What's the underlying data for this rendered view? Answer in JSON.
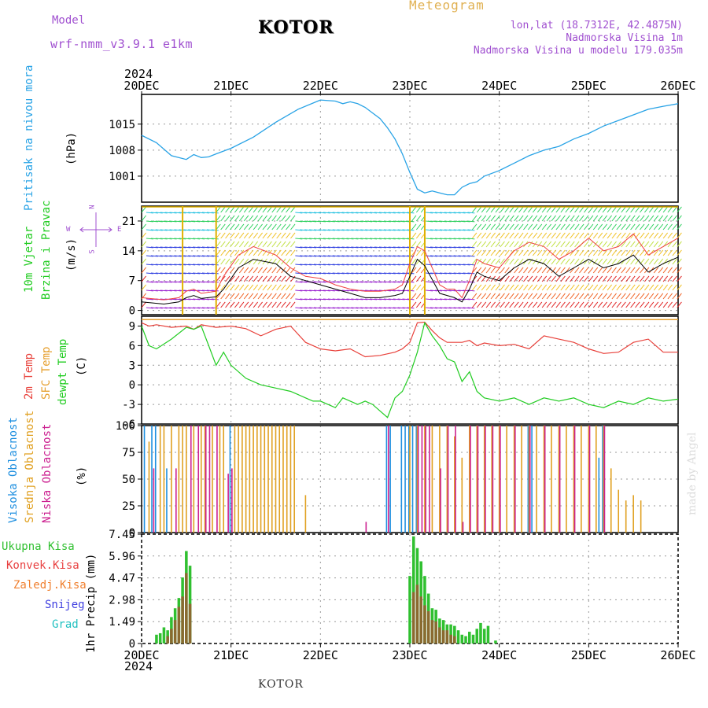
{
  "header": {
    "model_label": "Model",
    "model_name": "wrf-nmm_v3.9.1 e1km",
    "station": "KOTOR",
    "product": "Meteogram",
    "lonlat": "lon,lat (18.7312E, 42.4875N)",
    "elevation": "Nadmorska Visina 1m",
    "model_elevation": "Nadmorska Visina u modelu 179.035m",
    "watermark": "made by Angel",
    "footer_station": "KOTOR"
  },
  "time_axis": {
    "year": "2024",
    "ticks": [
      "20DEC",
      "21DEC",
      "22DEC",
      "23DEC",
      "24DEC",
      "25DEC",
      "26DEC"
    ]
  },
  "labels": {
    "pressure": [
      "Pritisak na nivou mora",
      "(hPa)"
    ],
    "wind": [
      "10m Vjetar",
      "Brzina i Pravac",
      "(m/s)"
    ],
    "wind_compass": {
      "north": "N",
      "west": "W",
      "east": "E",
      "south": "S"
    },
    "temp": [
      "2m Temp",
      "SFC Temp",
      "dewpt Temp",
      "(C)"
    ],
    "cloud": [
      "Visoka Oblacnost",
      "Srednja Oblacnost",
      "Niska Oblacnost",
      "(%)"
    ],
    "precip_legend": [
      "Ukupna Kisa",
      "Konvek.Kisa",
      "Zaledj.Kisa",
      "Snijeg",
      "Grad"
    ],
    "precip_axis": "1hr Precip (mm)"
  },
  "colors": {
    "pressure": "#29a3e6",
    "temp2m": "#e8403a",
    "sfc": "#e6a030",
    "dewpt": "#22cc22",
    "high_cloud": "#2090e0",
    "mid_cloud": "#e0a020",
    "low_cloud": "#cc2090",
    "total_rain": "#30c030",
    "conv_rain": "#e84040",
    "freezing": "#f08030",
    "snow": "#4040e0",
    "hail": "#20c0c0",
    "model_title": "#a050d0",
    "meteogram_title": "#e0b050"
  },
  "chart_data": [
    {
      "panel": "pressure",
      "type": "line",
      "ylim": [
        994,
        1023
      ],
      "yticks": [
        1001,
        1008,
        1015
      ],
      "grid": true,
      "series": [
        {
          "x": [
            0,
            4,
            8,
            12,
            14,
            16,
            18,
            20,
            24,
            30,
            36,
            42,
            48,
            52,
            54,
            56,
            58,
            60,
            62,
            64,
            66,
            68,
            70,
            72,
            74,
            76,
            78,
            80,
            82,
            84,
            86,
            88,
            90,
            92,
            96,
            100,
            104,
            108,
            112,
            116,
            120,
            124,
            128,
            132,
            136,
            140,
            144
          ],
          "y": [
            1012,
            1010,
            1006.5,
            1005.5,
            1006.8,
            1006,
            1006.2,
            1007,
            1008.5,
            1011.5,
            1015.5,
            1019,
            1021.5,
            1021.2,
            1020.5,
            1021,
            1020.5,
            1019.5,
            1018,
            1016.5,
            1014,
            1011,
            1007,
            1002,
            997.5,
            996.5,
            997,
            996.5,
            996,
            996,
            998,
            999,
            999.5,
            1001,
            1002.5,
            1004.5,
            1006.5,
            1008,
            1009,
            1011,
            1012.5,
            1014.5,
            1016,
            1017.5,
            1019,
            1019.8,
            1020.5
          ]
        }
      ]
    },
    {
      "panel": "wind",
      "type": "line",
      "ylim": [
        -1,
        24.5
      ],
      "yticks": [
        0,
        7,
        14,
        21
      ],
      "grid": true,
      "series": [
        {
          "name": "speed",
          "x": [
            0,
            6,
            10,
            12,
            14,
            16,
            20,
            22,
            26,
            30,
            36,
            40,
            44,
            48,
            52,
            56,
            60,
            64,
            68,
            70,
            72,
            74,
            76,
            80,
            82,
            84,
            86,
            88,
            90,
            92,
            96,
            100,
            104,
            108,
            112,
            116,
            120,
            124,
            128,
            132,
            136,
            140,
            144
          ],
          "y": [
            2,
            1.5,
            2,
            3,
            3.5,
            2.8,
            3.2,
            5,
            10,
            12,
            11,
            8,
            7,
            6,
            5,
            4,
            3,
            3,
            3.5,
            4,
            8,
            12,
            10.5,
            4,
            3.5,
            3,
            2,
            5,
            9,
            8,
            7,
            10,
            12,
            11,
            8,
            10,
            12,
            10,
            11,
            13,
            9,
            11,
            12.5
          ]
        },
        {
          "name": "gust",
          "x": [
            0,
            6,
            10,
            12,
            14,
            16,
            20,
            22,
            26,
            30,
            36,
            40,
            44,
            48,
            52,
            56,
            60,
            64,
            68,
            70,
            72,
            74,
            76,
            80,
            82,
            84,
            86,
            88,
            90,
            92,
            96,
            100,
            104,
            108,
            112,
            116,
            120,
            124,
            128,
            132,
            136,
            140,
            144
          ],
          "y": [
            3,
            2.5,
            3,
            4.5,
            5,
            4,
            4.5,
            8,
            13,
            15,
            13,
            10,
            8,
            7.5,
            6,
            5,
            4.5,
            4.5,
            5,
            6,
            11,
            15,
            14,
            6,
            5,
            5,
            3,
            7,
            12,
            11,
            10,
            14,
            16,
            15,
            12,
            14,
            17,
            14,
            15,
            18,
            13,
            15,
            17
          ]
        }
      ]
    },
    {
      "panel": "temperature",
      "type": "line",
      "ylim": [
        -6,
        10.5
      ],
      "yticks": [
        -6,
        -3,
        0,
        3,
        6,
        9
      ],
      "grid": true,
      "series": [
        {
          "name": "sfc",
          "x": [
            0,
            144
          ],
          "y": [
            10,
            10
          ]
        },
        {
          "name": "t2m",
          "x": [
            0,
            2,
            4,
            8,
            12,
            14,
            16,
            18,
            20,
            24,
            28,
            32,
            36,
            40,
            44,
            48,
            52,
            56,
            60,
            64,
            68,
            70,
            72,
            74,
            76,
            78,
            80,
            82,
            86,
            88,
            90,
            92,
            96,
            100,
            104,
            108,
            112,
            116,
            120,
            124,
            128,
            132,
            136,
            140,
            144
          ],
          "y": [
            9.5,
            9,
            9.2,
            8.8,
            9,
            8.5,
            9.2,
            9,
            8.8,
            9,
            8.6,
            7.5,
            8.5,
            9,
            6.5,
            5.5,
            5.2,
            5.5,
            4.3,
            4.5,
            5,
            5.5,
            6.5,
            9.5,
            9.6,
            8.3,
            7.2,
            6.5,
            6.5,
            6.8,
            6,
            6.4,
            6,
            6.2,
            5.5,
            7.5,
            7,
            6.5,
            5.5,
            4.8,
            5,
            6.5,
            7,
            5,
            5
          ]
        },
        {
          "name": "dewpt",
          "x": [
            0,
            2,
            4,
            8,
            12,
            14,
            16,
            18,
            20,
            22,
            24,
            28,
            32,
            36,
            40,
            42,
            44,
            46,
            48,
            50,
            52,
            54,
            56,
            58,
            60,
            62,
            64,
            66,
            68,
            70,
            72,
            74,
            76,
            78,
            80,
            82,
            84,
            86,
            88,
            90,
            92,
            96,
            100,
            104,
            108,
            112,
            116,
            120,
            124,
            128,
            132,
            136,
            140,
            144
          ],
          "y": [
            9,
            6,
            5.5,
            7,
            8.8,
            8.5,
            9,
            6,
            3,
            5,
            3,
            1,
            0,
            -0.5,
            -1,
            -1.5,
            -2,
            -2.5,
            -2.5,
            -3,
            -3.5,
            -2,
            -2.5,
            -3,
            -2.5,
            -3,
            -4,
            -5,
            -2,
            -1,
            1.5,
            5,
            9.5,
            7.5,
            6,
            4,
            3.5,
            0.5,
            2,
            -1,
            -2,
            -2.5,
            -2,
            -3,
            -2,
            -2.5,
            -2,
            -3,
            -3.5,
            -2.5,
            -3,
            -2,
            -2.5,
            -2.2
          ]
        }
      ]
    },
    {
      "panel": "cloud",
      "type": "bar",
      "ylim": [
        0,
        100
      ],
      "yticks": [
        0,
        25,
        50,
        75,
        100
      ],
      "grid": true,
      "series": [
        {
          "name": "high",
          "x": [
            1,
            3,
            4,
            7,
            24,
            66,
            67,
            70,
            71,
            72,
            73,
            74,
            104,
            105,
            123,
            124
          ],
          "y": [
            100,
            100,
            100,
            60,
            100,
            100,
            100,
            100,
            100,
            100,
            100,
            100,
            100,
            100,
            70,
            100
          ]
        },
        {
          "name": "mid",
          "x": [
            2,
            5,
            6,
            8,
            10,
            11,
            12,
            14,
            16,
            17,
            19,
            21,
            22,
            25,
            26,
            27,
            28,
            29,
            30,
            31,
            32,
            33,
            34,
            35,
            36,
            37,
            38,
            39,
            40,
            41,
            44,
            72,
            74,
            76,
            78,
            80,
            82,
            84,
            86,
            88,
            90,
            92,
            94,
            96,
            98,
            100,
            102,
            104,
            106,
            108,
            110,
            112,
            114,
            116,
            118,
            120,
            122,
            124,
            126,
            128,
            130,
            132,
            134
          ],
          "y": [
            85,
            100,
            100,
            100,
            100,
            100,
            100,
            100,
            100,
            100,
            100,
            100,
            100,
            100,
            100,
            100,
            100,
            100,
            100,
            100,
            100,
            100,
            100,
            100,
            100,
            100,
            100,
            100,
            100,
            100,
            35,
            100,
            100,
            100,
            100,
            100,
            100,
            90,
            70,
            100,
            100,
            100,
            100,
            100,
            100,
            100,
            100,
            100,
            100,
            100,
            100,
            100,
            100,
            100,
            100,
            100,
            100,
            100,
            60,
            40,
            30,
            35,
            30
          ]
        },
        {
          "name": "low",
          "x": [
            3,
            9,
            13,
            15,
            17,
            18,
            20,
            23,
            24,
            60,
            66,
            74,
            75,
            76,
            77,
            80,
            82,
            84,
            86,
            88,
            90,
            92,
            94,
            96,
            100,
            104,
            108,
            112,
            116,
            120,
            124
          ],
          "y": [
            60,
            60,
            100,
            100,
            100,
            100,
            100,
            55,
            60,
            10,
            100,
            100,
            100,
            100,
            100,
            60,
            100,
            100,
            10,
            100,
            100,
            100,
            100,
            100,
            100,
            100,
            100,
            100,
            100,
            100,
            100
          ]
        }
      ]
    },
    {
      "panel": "precip",
      "type": "bar",
      "ylim": [
        0,
        7.45
      ],
      "yticks": [
        0,
        1.49,
        2.98,
        4.47,
        5.96,
        7.45
      ],
      "grid": true,
      "series": [
        {
          "name": "total",
          "x": [
            4,
            5,
            6,
            7,
            8,
            9,
            10,
            11,
            12,
            13,
            72,
            73,
            74,
            75,
            76,
            77,
            78,
            79,
            80,
            81,
            82,
            83,
            84,
            85,
            86,
            87,
            88,
            89,
            90,
            91,
            92,
            93,
            95
          ],
          "y": [
            0.6,
            0.7,
            1.1,
            0.9,
            1.8,
            2.4,
            3.1,
            4.5,
            6.3,
            5.3,
            4.6,
            7.3,
            6.5,
            5.6,
            4.6,
            3.4,
            2.4,
            2.3,
            1.7,
            1.6,
            1.3,
            1.3,
            1.2,
            0.9,
            0.6,
            0.5,
            0.8,
            0.6,
            1.0,
            1.4,
            1.0,
            1.2,
            0.2
          ]
        },
        {
          "name": "conv",
          "x": [
            7,
            8,
            9,
            10,
            11,
            12,
            13,
            73,
            74,
            75,
            76,
            77,
            78,
            79,
            80,
            81,
            82,
            83,
            84
          ],
          "y": [
            0.5,
            1.0,
            1.6,
            2.5,
            3.2,
            4.8,
            2.7,
            3.5,
            4.0,
            3.2,
            2.6,
            2.2,
            1.6,
            1.5,
            1.1,
            0.9,
            0.9,
            0.6,
            0.5
          ]
        }
      ]
    }
  ]
}
